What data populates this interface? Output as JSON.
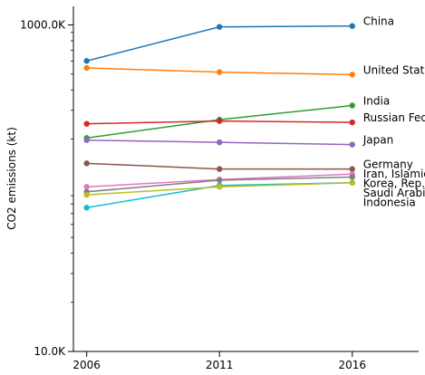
{
  "chart_data": {
    "type": "line",
    "ylabel": "CO2 emissions (kt)",
    "y_scale": "log",
    "ylim": [
      10000,
      1300000
    ],
    "xlim": [
      2005.5,
      2018.5
    ],
    "x": [
      2006,
      2011,
      2016
    ],
    "x_tick_labels": [
      "2006",
      "2011",
      "2016"
    ],
    "y_ticks": [
      {
        "value": 10000,
        "label": "10.0K"
      },
      {
        "value": 1000000,
        "label": "1000.0K"
      }
    ],
    "legend": "labels at line ends (right)",
    "series": [
      {
        "name": "China",
        "color": "#1f77b4",
        "values": [
          602000,
          973000,
          985000
        ]
      },
      {
        "name": "United States",
        "color": "#ff7f0e",
        "values": [
          545000,
          514000,
          496000
        ]
      },
      {
        "name": "India",
        "color": "#2ca02c",
        "values": [
          203000,
          263000,
          321000
        ]
      },
      {
        "name": "Russian Federation",
        "color": "#d62728",
        "values": [
          248000,
          258000,
          253000
        ]
      },
      {
        "name": "Japan",
        "color": "#9467bd",
        "values": [
          197000,
          191000,
          185000
        ]
      },
      {
        "name": "Germany",
        "color": "#8c564b",
        "values": [
          142000,
          131000,
          131000
        ]
      },
      {
        "name": "Iran, Islamic Rep.",
        "color": "#e377c2",
        "values": [
          102000,
          113000,
          122000
        ]
      },
      {
        "name": "Korea, Rep.",
        "color": "#7f7f7f",
        "values": [
          95000,
          112000,
          117000
        ]
      },
      {
        "name": "Saudi Arabia",
        "color": "#17becf",
        "values": [
          76000,
          104000,
          108000
        ]
      },
      {
        "name": "Indonesia",
        "color": "#bcbd22",
        "values": [
          91000,
          102000,
          108000
        ]
      }
    ]
  }
}
